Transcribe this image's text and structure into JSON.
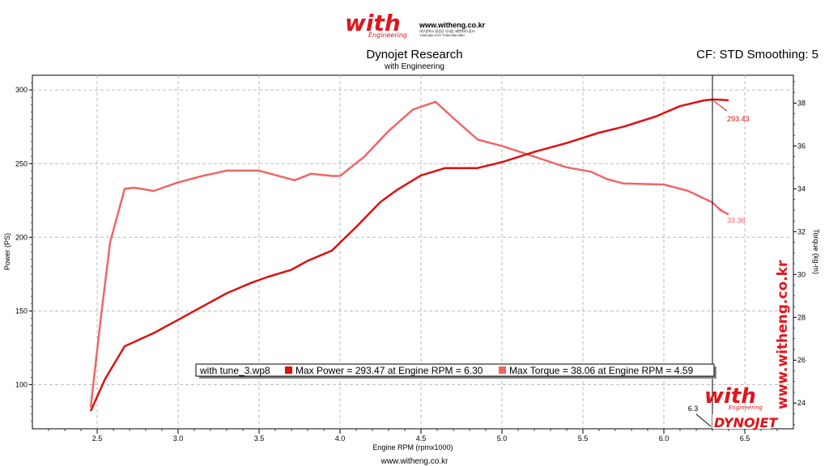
{
  "header": {
    "logo_word": "with",
    "logo_sub": "Engineering",
    "logo_url": "www.witheng.co.kr",
    "logo_address": "대구광역시 달성군 다사읍 세천북로1길37",
    "logo_phone": "T.053.582.0707  F.053.582.0807",
    "title": "Dynojet Research",
    "subtitle": "with Engineering",
    "cf_label": "CF: STD Smoothing: 5"
  },
  "footer": {
    "url": "www.witheng.co.kr",
    "watermark_vertical": "www.witheng.co.kr",
    "watermark_with": "with",
    "watermark_sub": "Engineering",
    "dynojet_logo": "DYNOJET"
  },
  "legend": {
    "file": "with tune_3.wp8",
    "power_entry": "Max Power = 293.47 at Engine RPM = 6.30",
    "torque_entry": "Max Torque = 38.06 at Engine RPM = 4.59"
  },
  "cursor": {
    "rpm": 6.3,
    "label": "6.3",
    "power_readout": "293.43",
    "torque_readout": "33.36"
  },
  "colors": {
    "power": "#dd1111",
    "torque": "#ee6666",
    "background": "#ffffff"
  },
  "chart_data": {
    "type": "line",
    "xlabel": "Engine RPM (rpmx1000)",
    "ylabel": "Power (PS)",
    "y2label": "Torque (kg-m)",
    "xlim": [
      2.1,
      6.8
    ],
    "ylim": [
      70,
      310
    ],
    "y2lim": [
      22.8,
      39.3
    ],
    "xticks": [
      2.5,
      3.0,
      3.5,
      4.0,
      4.5,
      5.0,
      5.5,
      6.0,
      6.5
    ],
    "xtick_labels": [
      "2.5",
      "3.0",
      "3.5",
      "4.0",
      "4.5",
      "5.0",
      "5.5",
      "6.0",
      "6.5"
    ],
    "yticks": [
      100,
      150,
      200,
      250,
      300
    ],
    "ytick_labels": [
      "100",
      "150",
      "200",
      "250",
      "300"
    ],
    "y2ticks": [
      24,
      26,
      28,
      30,
      32,
      34,
      36,
      38
    ],
    "y2tick_labels": [
      "24",
      "26",
      "28",
      "30",
      "32",
      "34",
      "36",
      "38"
    ],
    "grid": true,
    "series": [
      {
        "name": "Power",
        "axis": "left",
        "x": [
          2.46,
          2.55,
          2.67,
          2.85,
          3.0,
          3.15,
          3.3,
          3.45,
          3.55,
          3.7,
          3.8,
          3.95,
          4.1,
          4.25,
          4.35,
          4.5,
          4.65,
          4.85,
          5.0,
          5.2,
          5.4,
          5.6,
          5.75,
          5.95,
          6.1,
          6.25,
          6.3,
          6.35,
          6.4
        ],
        "y": [
          82,
          104,
          126,
          135,
          144,
          153,
          162,
          169,
          173,
          178,
          184,
          191,
          207,
          224,
          232,
          242,
          247,
          247,
          251,
          258,
          264,
          271,
          275,
          282,
          289,
          293,
          293.5,
          293.4,
          293
        ]
      },
      {
        "name": "Torque",
        "axis": "right",
        "x": [
          2.46,
          2.52,
          2.58,
          2.67,
          2.73,
          2.85,
          3.0,
          3.15,
          3.3,
          3.5,
          3.72,
          3.82,
          3.95,
          4.0,
          4.15,
          4.3,
          4.45,
          4.59,
          4.7,
          4.85,
          5.0,
          5.2,
          5.4,
          5.55,
          5.65,
          5.75,
          6.0,
          6.15,
          6.3,
          6.35,
          6.4
        ],
        "y": [
          23.8,
          27.8,
          31.5,
          34.0,
          34.05,
          33.9,
          34.3,
          34.6,
          34.85,
          34.85,
          34.4,
          34.7,
          34.6,
          34.6,
          35.5,
          36.7,
          37.7,
          38.06,
          37.3,
          36.3,
          36.0,
          35.5,
          35.0,
          34.8,
          34.45,
          34.25,
          34.2,
          33.9,
          33.36,
          33.0,
          32.8
        ]
      }
    ]
  }
}
